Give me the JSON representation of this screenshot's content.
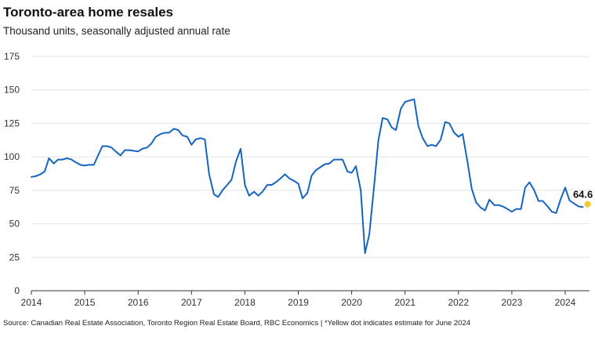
{
  "header": {
    "title": "Toronto-area home resales",
    "subtitle": "Thousand units, seasonally adjusted annual rate"
  },
  "footer": {
    "source": "Source: Canadian Real Estate Association, Toronto Region Real Estate Board, RBC Economics | *Yellow dot indicates estimate for June 2024"
  },
  "colors": {
    "line": "#1565c0",
    "estimate": "#f7c331",
    "grid": "#e3e3e3",
    "axis": "#333333"
  },
  "chart_data": {
    "type": "line",
    "title": "Toronto-area home resales",
    "subtitle": "Thousand units, seasonally adjusted annual rate",
    "ylim": [
      0,
      175
    ],
    "yticks": [
      0,
      25,
      50,
      75,
      100,
      125,
      150,
      175
    ],
    "xlim": [
      2014.0,
      2024.5
    ],
    "xticks": [
      "2014",
      "2015",
      "2016",
      "2017",
      "2018",
      "2019",
      "2020",
      "2021",
      "2022",
      "2023",
      "2024"
    ],
    "grid": true,
    "series": [
      {
        "name": "",
        "x": [
          2014.0,
          2014.08,
          2014.17,
          2014.25,
          2014.33,
          2014.42,
          2014.5,
          2014.58,
          2014.67,
          2014.75,
          2014.83,
          2014.92,
          2015.0,
          2015.08,
          2015.17,
          2015.25,
          2015.33,
          2015.42,
          2015.5,
          2015.58,
          2015.67,
          2015.75,
          2015.83,
          2015.92,
          2016.0,
          2016.08,
          2016.17,
          2016.25,
          2016.33,
          2016.42,
          2016.5,
          2016.58,
          2016.67,
          2016.75,
          2016.83,
          2016.92,
          2017.0,
          2017.08,
          2017.17,
          2017.25,
          2017.33,
          2017.42,
          2017.5,
          2017.58,
          2017.67,
          2017.75,
          2017.83,
          2017.92,
          2018.0,
          2018.08,
          2018.17,
          2018.25,
          2018.33,
          2018.42,
          2018.5,
          2018.58,
          2018.67,
          2018.75,
          2018.83,
          2018.92,
          2019.0,
          2019.08,
          2019.17,
          2019.25,
          2019.33,
          2019.42,
          2019.5,
          2019.58,
          2019.67,
          2019.75,
          2019.83,
          2019.92,
          2020.0,
          2020.08,
          2020.17,
          2020.25,
          2020.33,
          2020.42,
          2020.5,
          2020.58,
          2020.67,
          2020.75,
          2020.83,
          2020.92,
          2021.0,
          2021.08,
          2021.17,
          2021.25,
          2021.33,
          2021.42,
          2021.5,
          2021.58,
          2021.67,
          2021.75,
          2021.83,
          2021.92,
          2022.0,
          2022.08,
          2022.17,
          2022.25,
          2022.33,
          2022.42,
          2022.5,
          2022.58,
          2022.67,
          2022.75,
          2022.83,
          2022.92,
          2023.0,
          2023.08,
          2023.17,
          2023.25,
          2023.33,
          2023.42,
          2023.5,
          2023.58,
          2023.67,
          2023.75,
          2023.83,
          2023.92,
          2024.0,
          2024.08,
          2024.17,
          2024.25,
          2024.33
        ],
        "values": [
          85,
          85.5,
          87,
          89,
          99,
          95,
          98,
          98,
          99,
          98,
          96,
          94,
          93.5,
          94,
          94,
          101,
          108,
          108,
          107,
          104,
          101,
          105,
          105,
          104.5,
          104,
          106,
          107,
          110,
          115,
          117,
          118,
          118,
          121,
          120,
          116,
          115,
          109,
          113,
          114,
          113,
          87,
          72,
          70,
          75,
          79,
          83,
          96,
          106,
          79,
          71,
          74,
          71,
          74,
          79,
          79,
          81,
          84,
          87,
          84,
          82,
          80,
          69,
          73,
          86,
          90,
          92.5,
          94.5,
          95,
          98,
          98,
          98,
          89,
          88,
          93,
          75,
          28,
          42,
          78,
          112,
          129,
          128,
          122,
          120,
          136,
          141,
          142,
          143,
          123,
          114,
          108,
          109,
          108,
          113,
          126,
          125,
          118,
          115,
          117,
          96,
          76,
          66,
          62,
          60,
          68,
          64,
          64,
          63,
          61,
          59,
          61,
          61,
          77,
          81,
          75,
          67,
          67,
          63,
          59,
          58,
          69,
          77,
          67.5,
          65,
          63,
          62.5
        ],
        "color": "#1565c0"
      }
    ],
    "estimate": {
      "x": 2024.42,
      "value": 64.6,
      "label": "64.6",
      "color": "#f7c331"
    }
  }
}
